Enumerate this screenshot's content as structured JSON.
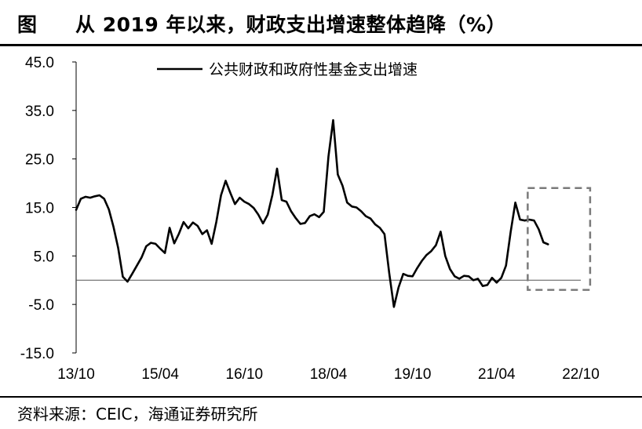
{
  "header": {
    "figure_label": "图",
    "title": "从 2019 年以来，财政支出增速整体趋降（%）"
  },
  "footer": {
    "source": "资料来源：CEIC，海通证券研究所"
  },
  "chart_data": {
    "type": "line",
    "title": "从 2019 年以来，财政支出增速整体趋降（%）",
    "xlabel": "",
    "ylabel": "",
    "ylim": [
      -15,
      45
    ],
    "yticks": [
      "45.0",
      "35.0",
      "25.0",
      "15.0",
      "5.0",
      "-5.0",
      "-15.0"
    ],
    "ytick_values": [
      45,
      35,
      25,
      15,
      5,
      -5,
      -15
    ],
    "xticks": [
      "13/10",
      "15/04",
      "16/10",
      "18/04",
      "19/10",
      "21/04",
      "22/10"
    ],
    "xtick_values": [
      "2013-10",
      "2015-04",
      "2016-10",
      "2018-04",
      "2019-10",
      "2021-04",
      "2022-10"
    ],
    "reference_line": 0,
    "legend": {
      "position": "top-center"
    },
    "highlight_box": {
      "x_start": "2022-02",
      "x_end": "2022-12",
      "y_low": -2,
      "y_high": 19
    },
    "series": [
      {
        "name": "公共财政和政府性基金支出增速",
        "color": "#000000",
        "points": [
          [
            "2013-10",
            14.5
          ],
          [
            "2013-11",
            16.8
          ],
          [
            "2013-12",
            17.2
          ],
          [
            "2014-01",
            17.0
          ],
          [
            "2014-02",
            17.3
          ],
          [
            "2014-03",
            17.5
          ],
          [
            "2014-04",
            16.8
          ],
          [
            "2014-05",
            14.6
          ],
          [
            "2014-06",
            11.0
          ],
          [
            "2014-07",
            6.6
          ],
          [
            "2014-08",
            0.7
          ],
          [
            "2014-09",
            -0.3
          ],
          [
            "2014-10",
            1.3
          ],
          [
            "2014-11",
            3.0
          ],
          [
            "2014-12",
            4.7
          ],
          [
            "2015-01",
            7.0
          ],
          [
            "2015-02",
            7.7
          ],
          [
            "2015-03",
            7.5
          ],
          [
            "2015-04",
            6.5
          ],
          [
            "2015-05",
            5.6
          ],
          [
            "2015-06",
            10.8
          ],
          [
            "2015-07",
            7.6
          ],
          [
            "2015-08",
            9.6
          ],
          [
            "2015-09",
            12.0
          ],
          [
            "2015-10",
            10.7
          ],
          [
            "2015-11",
            11.9
          ],
          [
            "2015-12",
            11.2
          ],
          [
            "2016-01",
            9.5
          ],
          [
            "2016-02",
            10.3
          ],
          [
            "2016-03",
            7.5
          ],
          [
            "2016-04",
            12.0
          ],
          [
            "2016-05",
            17.5
          ],
          [
            "2016-06",
            20.5
          ],
          [
            "2016-07",
            18.0
          ],
          [
            "2016-08",
            15.7
          ],
          [
            "2016-09",
            17.0
          ],
          [
            "2016-10",
            16.2
          ],
          [
            "2016-11",
            15.7
          ],
          [
            "2016-12",
            14.9
          ],
          [
            "2017-01",
            13.5
          ],
          [
            "2017-02",
            11.7
          ],
          [
            "2017-03",
            13.5
          ],
          [
            "2017-04",
            17.6
          ],
          [
            "2017-05",
            23.0
          ],
          [
            "2017-06",
            16.5
          ],
          [
            "2017-07",
            16.2
          ],
          [
            "2017-08",
            14.2
          ],
          [
            "2017-09",
            12.8
          ],
          [
            "2017-10",
            11.6
          ],
          [
            "2017-11",
            11.8
          ],
          [
            "2017-12",
            13.2
          ],
          [
            "2018-01",
            13.6
          ],
          [
            "2018-02",
            13.0
          ],
          [
            "2018-03",
            14.1
          ],
          [
            "2018-04",
            25.5
          ],
          [
            "2018-05",
            33.0
          ],
          [
            "2018-06",
            21.8
          ],
          [
            "2018-07",
            19.5
          ],
          [
            "2018-08",
            16.0
          ],
          [
            "2018-09",
            15.2
          ],
          [
            "2018-10",
            15.0
          ],
          [
            "2018-11",
            14.2
          ],
          [
            "2018-12",
            13.2
          ],
          [
            "2019-01",
            12.7
          ],
          [
            "2019-02",
            11.5
          ],
          [
            "2019-03",
            10.8
          ],
          [
            "2019-04",
            9.5
          ],
          [
            "2019-05",
            1.5
          ],
          [
            "2019-06",
            -5.5
          ],
          [
            "2019-07",
            -1.5
          ],
          [
            "2019-08",
            1.3
          ],
          [
            "2019-09",
            0.9
          ],
          [
            "2019-10",
            0.8
          ],
          [
            "2019-11",
            2.5
          ],
          [
            "2019-12",
            4.0
          ],
          [
            "2020-01",
            5.2
          ],
          [
            "2020-02",
            6.0
          ],
          [
            "2020-03",
            7.2
          ],
          [
            "2020-04",
            10.0
          ],
          [
            "2020-05",
            5.0
          ],
          [
            "2020-06",
            2.3
          ],
          [
            "2020-07",
            0.8
          ],
          [
            "2020-08",
            0.3
          ],
          [
            "2020-09",
            0.9
          ],
          [
            "2020-10",
            0.8
          ],
          [
            "2020-11",
            0.0
          ],
          [
            "2020-12",
            0.3
          ],
          [
            "2021-01",
            -1.2
          ],
          [
            "2021-02",
            -1.0
          ],
          [
            "2021-03",
            0.5
          ],
          [
            "2021-04",
            -0.5
          ],
          [
            "2021-05",
            0.5
          ],
          [
            "2021-06",
            3.0
          ],
          [
            "2021-07",
            10.0
          ],
          [
            "2021-08",
            16.0
          ],
          [
            "2021-09",
            12.5
          ],
          [
            "2021-10",
            12.3
          ],
          [
            "2021-11",
            12.5
          ],
          [
            "2021-12",
            12.3
          ],
          [
            "2022-01",
            10.5
          ],
          [
            "2022-02",
            7.8
          ],
          [
            "2022-03",
            7.4
          ]
        ]
      }
    ]
  }
}
